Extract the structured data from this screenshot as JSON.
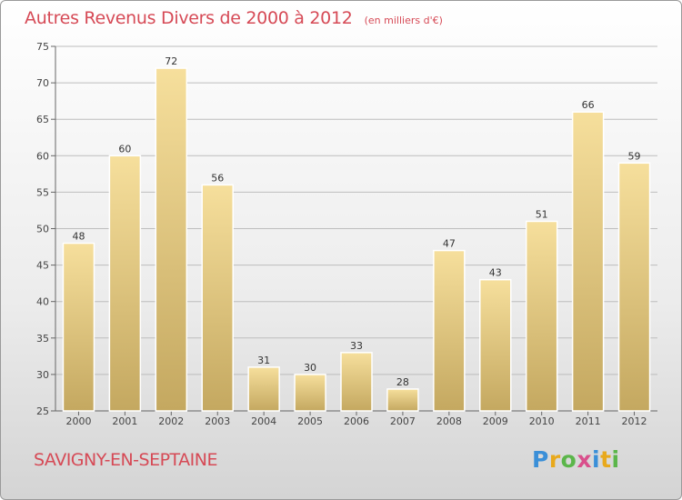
{
  "title": "Autres Revenus Divers de 2000 à 2012",
  "subtitle": "(en milliers d'€)",
  "commune": "SAVIGNY-EN-SEPTAINE",
  "logo": {
    "text": "Proxiti",
    "letters": [
      "P",
      "r",
      "o",
      "x",
      "i",
      "t",
      "i"
    ],
    "colors": [
      "#3a8fd8",
      "#e8a91c",
      "#5bb64a",
      "#d94f8c",
      "#3a8fd8",
      "#e8a91c",
      "#5bb64a"
    ]
  },
  "colors": {
    "title": "#d64a56",
    "bar_top": "#f6df9c",
    "bar_bottom": "#c4a860",
    "grid": "#bdbdbd"
  },
  "chart_data": {
    "type": "bar",
    "categories": [
      "2000",
      "2001",
      "2002",
      "2003",
      "2004",
      "2005",
      "2006",
      "2007",
      "2008",
      "2009",
      "2010",
      "2011",
      "2012"
    ],
    "values": [
      48,
      60,
      72,
      56,
      31,
      30,
      33,
      28,
      47,
      43,
      51,
      66,
      59
    ],
    "data_labels": [
      "48",
      "60",
      "72",
      "56",
      "31",
      "30",
      "33",
      "28",
      "47",
      "43",
      "51",
      "66",
      "59"
    ],
    "title": "Autres Revenus Divers de 2000 à 2012",
    "subtitle": "(en milliers d'€)",
    "xlabel": "",
    "ylabel": "",
    "ylim": [
      25,
      75
    ],
    "yticks": [
      25,
      30,
      35,
      40,
      45,
      50,
      55,
      60,
      65,
      70,
      75
    ],
    "grid": true,
    "legend": "none"
  }
}
